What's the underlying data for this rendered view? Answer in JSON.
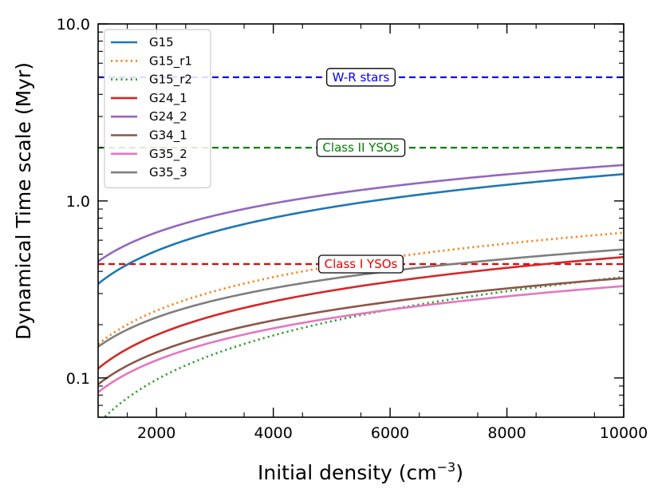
{
  "chart_data": {
    "type": "line",
    "title": "",
    "xlabel": "Initial density (cm",
    "xlabel_sup": "−3",
    "xlabel_end": ")",
    "ylabel": "Dynamical Time scale (Myr)",
    "xlim": [
      1000,
      10000
    ],
    "ylim": [
      0.06,
      10.0
    ],
    "yscale": "log",
    "x_ticks": [
      2000,
      4000,
      6000,
      8000,
      10000
    ],
    "x_tick_labels": [
      "2000",
      "4000",
      "6000",
      "8000",
      "10000"
    ],
    "y_ticks": [
      0.1,
      1.0,
      10.0
    ],
    "y_tick_labels": [
      "0.1",
      "1.0",
      "10.0"
    ],
    "legend_position": "top-left",
    "curve_model": "t = t_ref * (n / 1000)^exponent",
    "series": [
      {
        "name": "G15",
        "color": "#1f77b4",
        "style": "solid",
        "t_ref": 0.34,
        "exponent": 0.62
      },
      {
        "name": "G15_r1",
        "color": "#ff7f0e",
        "style": "dotted",
        "t_ref": 0.155,
        "exponent": 0.63
      },
      {
        "name": "G15_r2",
        "color": "#2ca02c",
        "style": "dotted",
        "t_ref": 0.055,
        "exponent": 0.83
      },
      {
        "name": "G24_1",
        "color": "#d62728",
        "style": "solid",
        "t_ref": 0.113,
        "exponent": 0.63
      },
      {
        "name": "G24_2",
        "color": "#9467bd",
        "style": "solid",
        "t_ref": 0.455,
        "exponent": 0.545
      },
      {
        "name": "G34_1",
        "color": "#8c564b",
        "style": "solid",
        "t_ref": 0.092,
        "exponent": 0.6
      },
      {
        "name": "G35_2",
        "color": "#e377c2",
        "style": "solid",
        "t_ref": 0.083,
        "exponent": 0.6
      },
      {
        "name": "G35_3",
        "color": "#7f7f7f",
        "style": "solid",
        "t_ref": 0.15,
        "exponent": 0.55
      }
    ],
    "reference_lines": [
      {
        "label": "W-R stars",
        "y": 5.0,
        "color": "#0000ee",
        "label_x": 5500
      },
      {
        "label": "Class II YSOs",
        "y": 2.0,
        "color": "#007f00",
        "label_x": 5500
      },
      {
        "label": "Class I YSOs",
        "y": 0.44,
        "color": "#ee0000",
        "label_x": 5500
      }
    ]
  }
}
